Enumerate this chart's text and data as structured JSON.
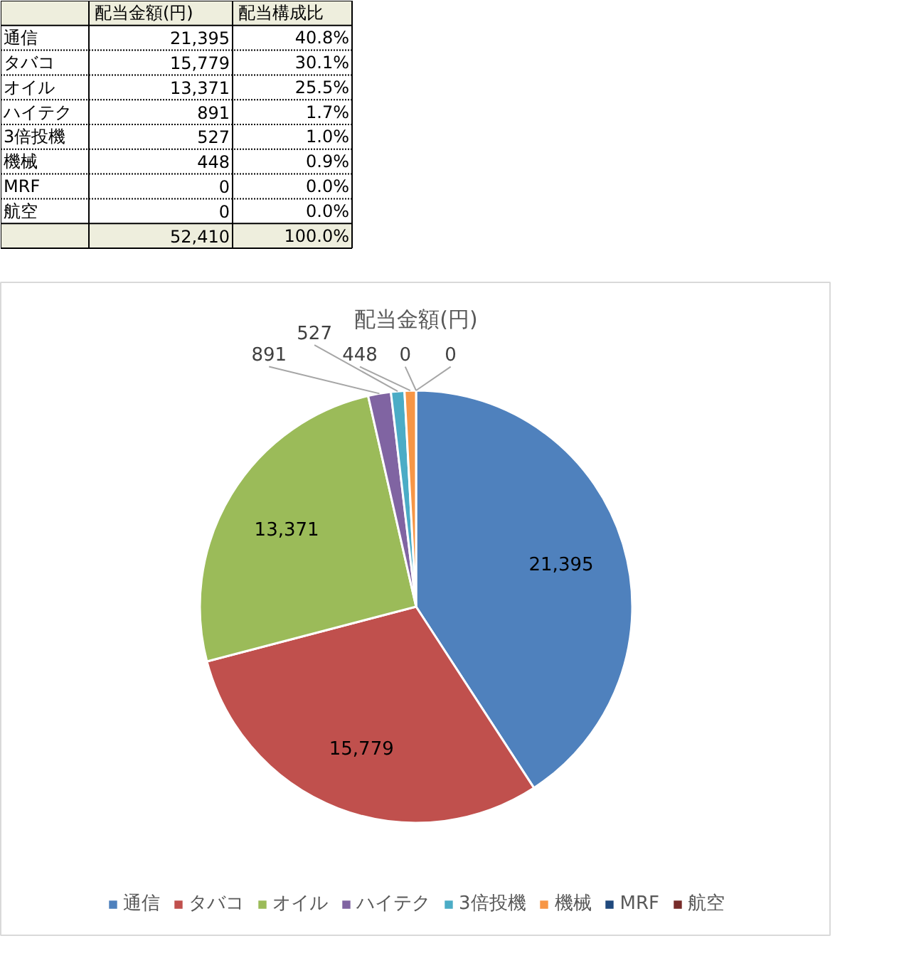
{
  "chart_data": [
    {
      "type": "other",
      "categories": [
        "通信",
        "タバコ",
        "オイル",
        "ハイテク",
        "3倍投機",
        "機械",
        "MRF",
        "航空"
      ],
      "series": [
        {
          "name": "配当金額(円)",
          "values": [
            21395,
            15779,
            13371,
            891,
            527,
            448,
            0,
            0
          ],
          "value_labels": [
            "21,395",
            "15,779",
            "13,371",
            "891",
            "527",
            "448",
            "0",
            "0"
          ]
        },
        {
          "name": "配当構成比",
          "values": [
            40.8,
            30.1,
            25.5,
            1.7,
            1.0,
            0.9,
            0.0,
            0.0
          ],
          "value_labels": [
            "40.8%",
            "30.1%",
            "25.5%",
            "1.7%",
            "1.0%",
            "0.9%",
            "0.0%",
            "0.0%"
          ]
        }
      ],
      "annotations": [
        "52,410",
        "100.0%"
      ]
    },
    {
      "type": "pie",
      "title": "配当金額(円)",
      "categories": [
        "通信",
        "タバコ",
        "オイル",
        "ハイテク",
        "3倍投機",
        "機械",
        "MRF",
        "航空"
      ],
      "values": [
        21395,
        15779,
        13371,
        891,
        527,
        448,
        0,
        0
      ],
      "value_labels": [
        "21,395",
        "15,779",
        "13,371",
        "891",
        "527",
        "448",
        "0",
        "0"
      ],
      "colors": [
        "#4f81bd",
        "#c0504d",
        "#9bbb59",
        "#8064a2",
        "#4bacc6",
        "#f79646",
        "#1f497d",
        "#772c2a"
      ],
      "data_labels": true,
      "legend": "bottom"
    }
  ]
}
